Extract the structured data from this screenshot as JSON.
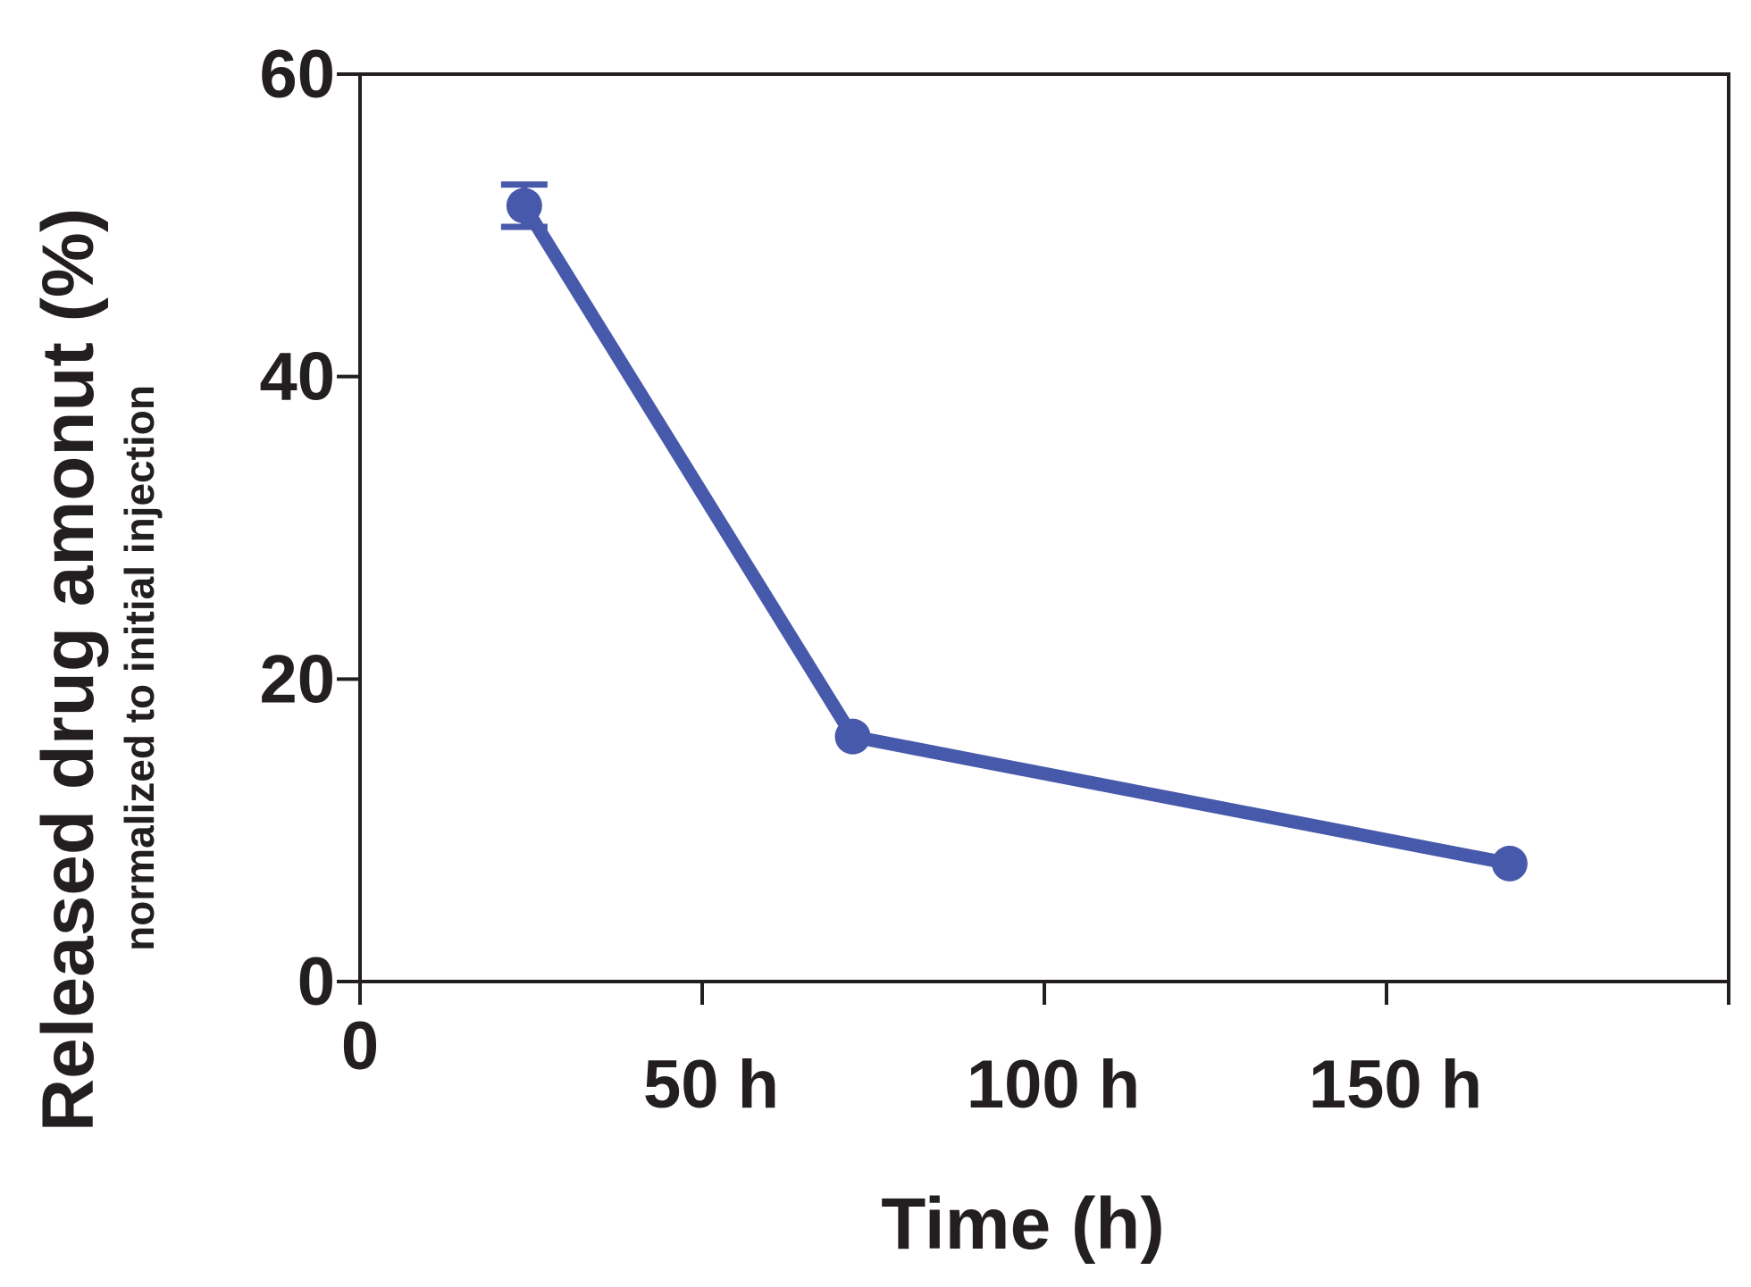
{
  "chart_data": {
    "type": "line",
    "xlabel": "Time (h)",
    "ylabel": "Released drug amonut (%)",
    "ylabel_sub": "normalized to initial injection",
    "xlim": [
      0,
      200
    ],
    "ylim": [
      0,
      60
    ],
    "x_ticks": [
      0,
      50,
      100,
      150,
      200
    ],
    "x_tick_labels": [
      "0",
      "50 h",
      "100 h",
      "150 h",
      ""
    ],
    "y_ticks": [
      0,
      20,
      40,
      60
    ],
    "y_tick_labels": [
      "0",
      "20",
      "40",
      "60"
    ],
    "grid": false,
    "series": [
      {
        "color": "#4759aa",
        "x": [
          24,
          72,
          168
        ],
        "y": [
          51.3,
          16.2,
          7.8
        ],
        "error": [
          1.4,
          0.4,
          0.3
        ]
      }
    ]
  }
}
